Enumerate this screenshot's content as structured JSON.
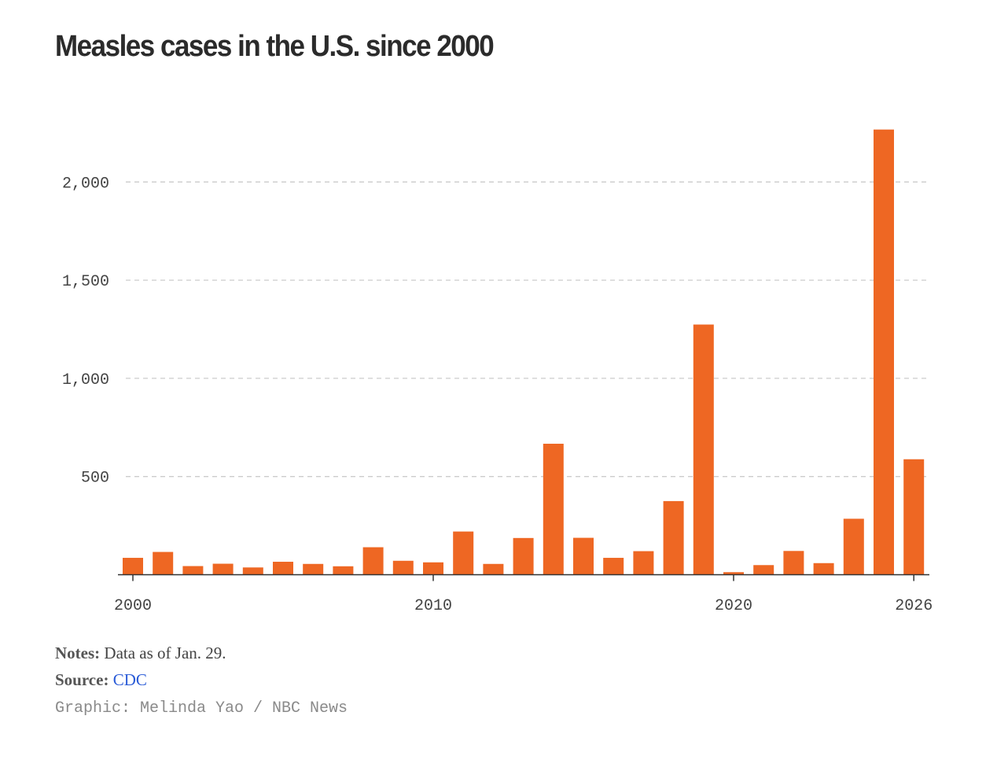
{
  "title": "Measles cases in the U.S. since 2000",
  "chart_data": {
    "type": "bar",
    "title": "Measles cases in the U.S. since 2000",
    "xlabel": "",
    "ylabel": "",
    "categories": [
      2000,
      2001,
      2002,
      2003,
      2004,
      2005,
      2006,
      2007,
      2008,
      2009,
      2010,
      2011,
      2012,
      2013,
      2014,
      2015,
      2016,
      2017,
      2018,
      2019,
      2020,
      2021,
      2022,
      2023,
      2024,
      2025,
      2026
    ],
    "values": [
      86,
      116,
      44,
      56,
      37,
      66,
      55,
      43,
      140,
      71,
      63,
      220,
      55,
      187,
      667,
      188,
      86,
      120,
      375,
      1274,
      13,
      49,
      121,
      59,
      285,
      2267,
      588
    ],
    "ylim": [
      0,
      2300
    ],
    "yticks": [
      500,
      1000,
      1500,
      2000
    ],
    "ytick_labels": [
      "500",
      "1,000",
      "1,500",
      "2,000"
    ],
    "xticks": [
      2000,
      2010,
      2020,
      2026
    ],
    "xtick_labels": [
      "2000",
      "2010",
      "2020",
      "2026"
    ],
    "grid": "horizontal dashed",
    "bar_color": "#ee6723"
  },
  "footer": {
    "notes_label": "Notes:",
    "notes_text": "Data as of Jan. 29.",
    "source_label": "Source:",
    "source_link": "CDC",
    "credit": "Graphic: Melinda Yao / NBC News"
  },
  "colors": {
    "bar": "#ee6723",
    "title": "#2b2b2b",
    "link": "#2a5bd7",
    "grid": "#cccccc",
    "axis": "#333333",
    "credit": "#8a8a8a"
  }
}
